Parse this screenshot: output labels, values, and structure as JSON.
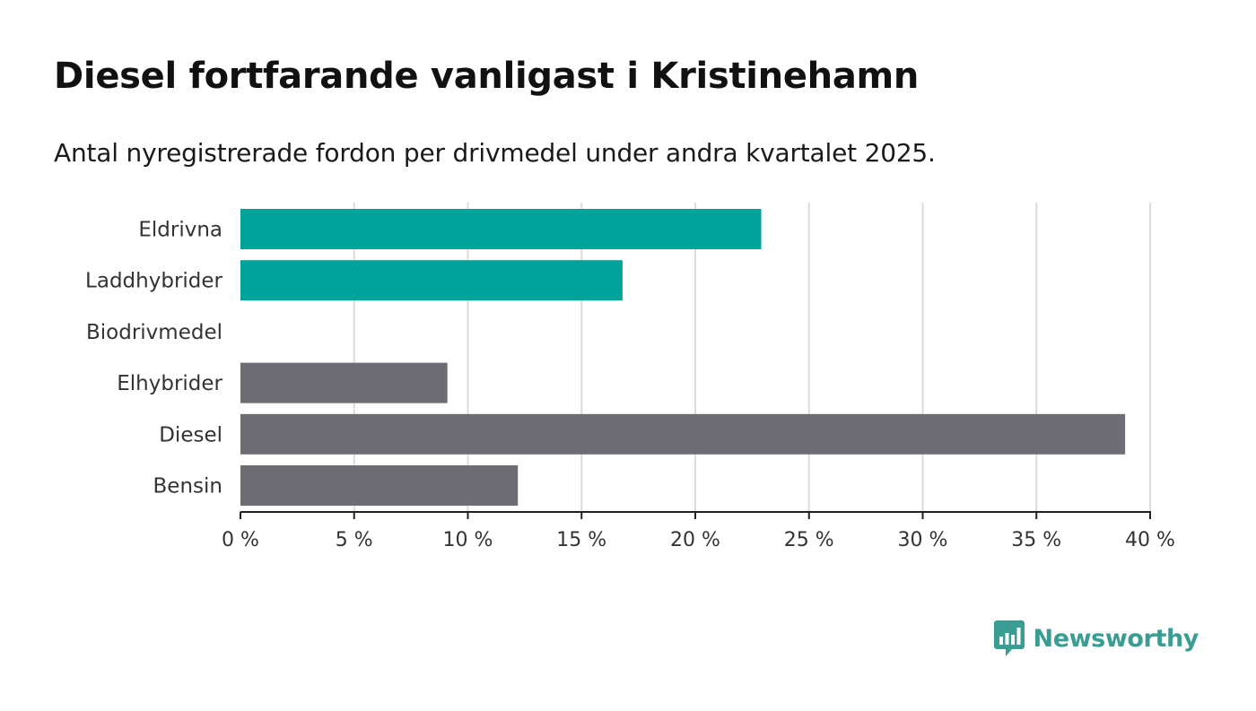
{
  "title": "Diesel fortfarande vanligast i Kristinehamn",
  "subtitle": "Antal nyregistrerade fordon per drivmedel under andra kvartalet 2025.",
  "brand": {
    "name": "Newsworthy",
    "logo_icon": "bar-chart-speech-bubble-icon"
  },
  "colors": {
    "highlight": "#00a39a",
    "neutral": "#6e6d73",
    "grid": "#dcdcdc",
    "axis": "#222222",
    "brand": "#3a9d93"
  },
  "chart_data": {
    "type": "bar",
    "orientation": "horizontal",
    "categories": [
      "Eldrivna",
      "Laddhybrider",
      "Biodrivmedel",
      "Elhybrider",
      "Diesel",
      "Bensin"
    ],
    "values": [
      22.9,
      16.8,
      0,
      9.1,
      38.9,
      12.2
    ],
    "highlighted": [
      true,
      true,
      false,
      false,
      false,
      false
    ],
    "unit": "%",
    "xlim": [
      0,
      40
    ],
    "ticks": [
      0,
      5,
      10,
      15,
      20,
      25,
      30,
      35,
      40
    ],
    "tick_labels": [
      "0 %",
      "5 %",
      "10 %",
      "15 %",
      "20 %",
      "25 %",
      "30 %",
      "35 %",
      "40 %"
    ],
    "grid": true,
    "legend": "none",
    "xlabel": "",
    "ylabel": ""
  }
}
